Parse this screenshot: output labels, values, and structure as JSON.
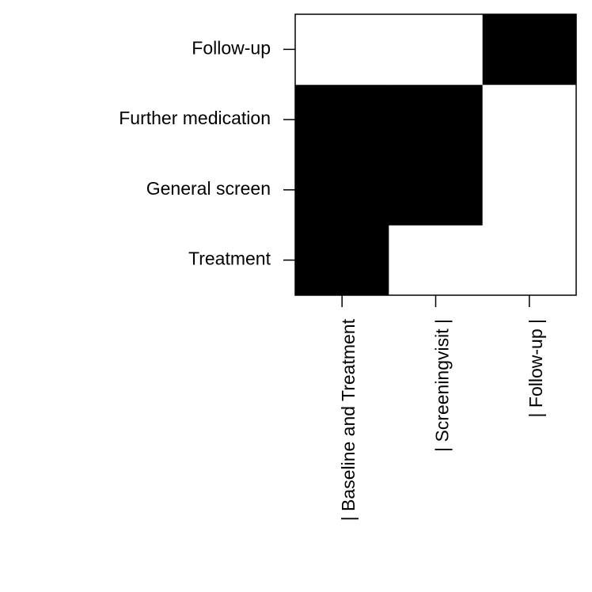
{
  "chart_data": {
    "type": "heatmap",
    "title": "",
    "xlabel": "",
    "ylabel": "",
    "x_categories": [
      "|   Baseline and Treatment",
      "|   Screeningvisit   |",
      "|   Follow-up   |"
    ],
    "y_categories": [
      "Treatment",
      "General screen",
      "Further medication",
      "Follow-up"
    ],
    "values": [
      [
        1,
        0,
        0
      ],
      [
        1,
        1,
        0
      ],
      [
        1,
        1,
        0
      ],
      [
        0,
        0,
        1
      ]
    ],
    "colors": {
      "filled": "#000000",
      "empty": "#ffffff",
      "border": "#000000"
    },
    "grid": false,
    "legend": "none"
  }
}
